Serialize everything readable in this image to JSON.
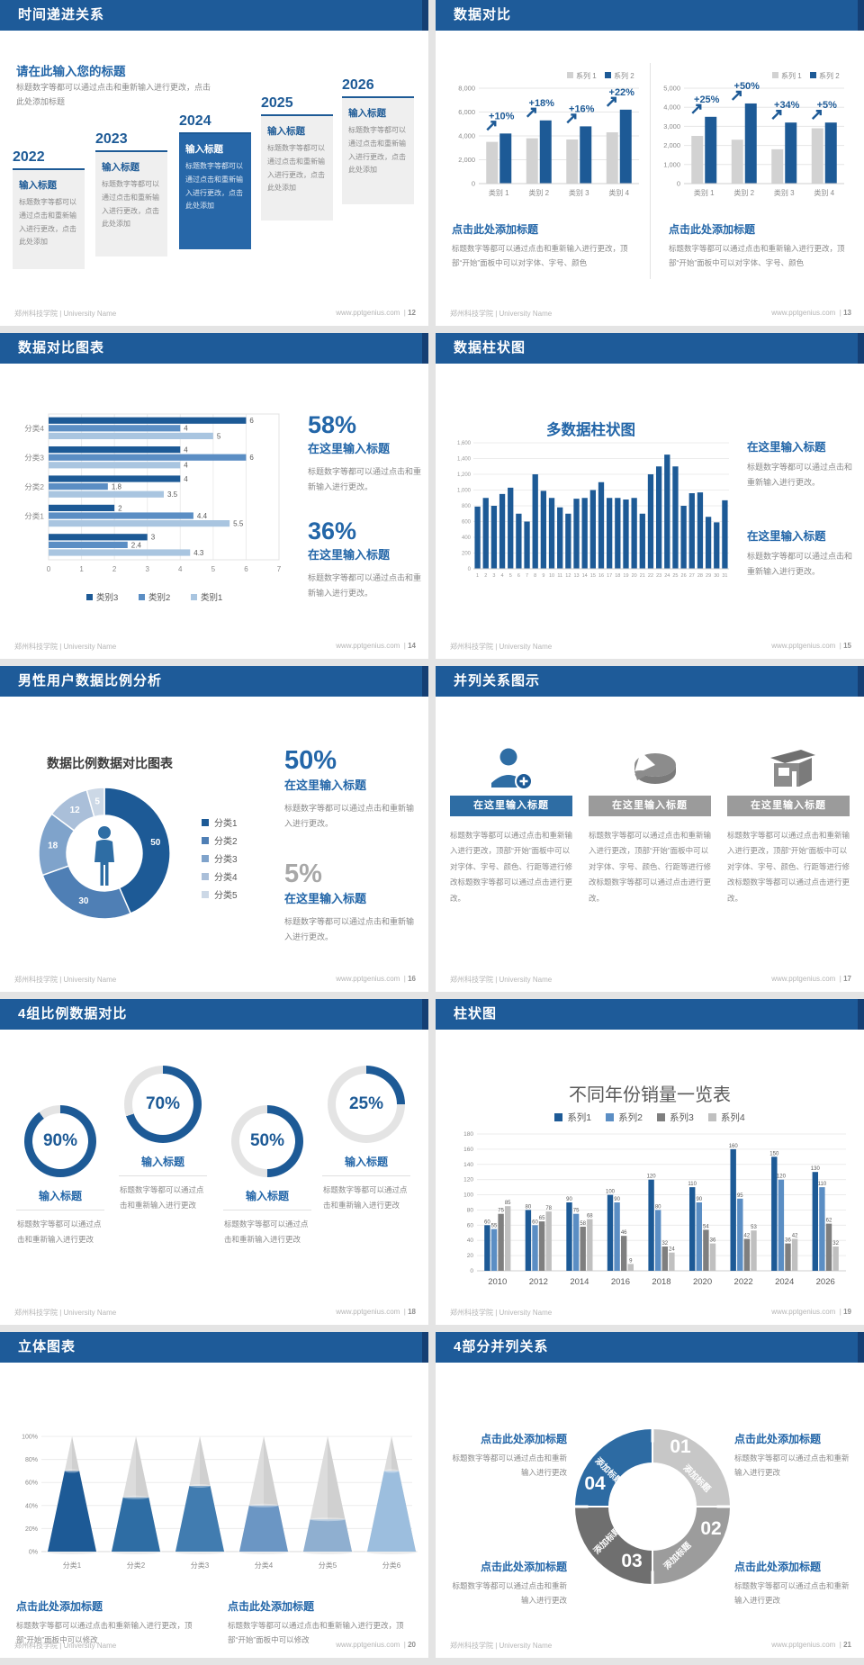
{
  "colors": {
    "header": "#1e5b99",
    "header_cap": "#153f74",
    "accent": "#2366a8",
    "dark": "#1d5a96",
    "mid": "#5b8ec4",
    "light": "#a9c5e0",
    "gray_bar": "#d2d2d2",
    "body_text": "#8a8a8a",
    "label": "#595959",
    "donut": [
      "#1d5a96",
      "#4f7fb5",
      "#7fa3cb",
      "#aabfd9",
      "#ccd8e6"
    ],
    "series4": [
      "#1d5a96",
      "#5b8ec4",
      "#7f7f7f",
      "#c0c0c0"
    ],
    "cones": [
      "#1d5a96",
      "#2e6da4",
      "#417cb0",
      "#6b96c4",
      "#8fafd0",
      "#9cbede"
    ],
    "ring_parts": [
      "#c7c7c7",
      "#9c9c9c",
      "#6f6f6f",
      "#2d6ba3"
    ]
  },
  "footer": {
    "org": "郑州科技学院 | University Name",
    "site": "www.pptgenius.com"
  },
  "slides": {
    "s12": {
      "title": "时间递进关系",
      "page": "12",
      "heading": "请在此输入您的标题",
      "intro": "标题数字等都可以通过点击和重新输入进行更改，点击此处添加标题",
      "items": [
        {
          "year": "2022",
          "head": "输入标题",
          "body": "标题数字等都可以通过点击和重新输入进行更改，点击此处添加",
          "highlight": false
        },
        {
          "year": "2023",
          "head": "输入标题",
          "body": "标题数字等都可以通过点击和重新输入进行更改，点击此处添加",
          "highlight": false
        },
        {
          "year": "2024",
          "head": "输入标题",
          "body": "标题数字等都可以通过点击和重新输入进行更改，点击此处添加",
          "highlight": true
        },
        {
          "year": "2025",
          "head": "输入标题",
          "body": "标题数字等都可以通过点击和重新输入进行更改，点击此处添加",
          "highlight": false
        },
        {
          "year": "2026",
          "head": "输入标题",
          "body": "标题数字等都可以通过点击和重新输入进行更改，点击此处添加",
          "highlight": false
        }
      ]
    },
    "s13": {
      "title": "数据对比",
      "page": "13",
      "blocks": [
        {
          "head": "点击此处添加标题",
          "body": "标题数字等都可以通过点击和重新输入进行更改，顶部“开始”面板中可以对字体、字号、颜色"
        },
        {
          "head": "点击此处添加标题",
          "body": "标题数字等都可以通过点击和重新输入进行更改，顶部“开始”面板中可以对字体、字号、颜色"
        }
      ]
    },
    "s14": {
      "title": "数据对比图表",
      "page": "14",
      "stats": [
        {
          "pct": "58%",
          "head": "在这里输入标题",
          "body": "标题数字等都可以通过点击和重新输入进行更改。"
        },
        {
          "pct": "36%",
          "head": "在这里输入标题",
          "body": "标题数字等都可以通过点击和重新输入进行更改。"
        }
      ]
    },
    "s15": {
      "title": "数据柱状图",
      "page": "15",
      "blocks": [
        {
          "head": "在这里输入标题",
          "body": "标题数字等都可以通过点击和重新输入进行更改。"
        },
        {
          "head": "在这里输入标题",
          "body": "标题数字等都可以通过点击和重新输入进行更改。"
        }
      ]
    },
    "s16": {
      "title": "男性用户数据比例分析",
      "page": "16",
      "stats": [
        {
          "pct": "50%",
          "head": "在这里输入标题",
          "body": "标题数字等都可以通过点击和重新输入进行更改。",
          "gray": false
        },
        {
          "pct": "5%",
          "head": "在这里输入标题",
          "body": "标题数字等都可以通过点击和重新输入进行更改。",
          "gray": true
        }
      ]
    },
    "s17": {
      "title": "并列关系图示",
      "page": "17",
      "columns": [
        {
          "icon": "woman-add-icon",
          "head": "在这里输入标题",
          "body": "标题数字等都可以通过点击和重新输入进行更改，顶部“开始”面板中可以对字体、字号、颜色、行距等进行修改标题数字等都可以通过点击进行更改。",
          "accent": true
        },
        {
          "icon": "pie-icon",
          "head": "在这里输入标题",
          "body": "标题数字等都可以通过点击和重新输入进行更改，顶部“开始”面板中可以对字体、字号、颜色、行距等进行修改标题数字等都可以通过点击进行更改。",
          "accent": false
        },
        {
          "icon": "shop-icon",
          "head": "在这里输入标题",
          "body": "标题数字等都可以通过点击和重新输入进行更改，顶部“开始”面板中可以对字体、字号、颜色、行距等进行修改标题数字等都可以通过点击进行更改。",
          "accent": false
        }
      ]
    },
    "s18": {
      "title": "4组比例数据对比",
      "page": "18",
      "items": [
        {
          "label": "90%",
          "value": 90,
          "head": "输入标题",
          "body": "标题数字等都可以通过点击和重新输入进行更改",
          "raised": false
        },
        {
          "label": "70%",
          "value": 70,
          "head": "输入标题",
          "body": "标题数字等都可以通过点击和重新输入进行更改",
          "raised": true
        },
        {
          "label": "50%",
          "value": 50,
          "head": "输入标题",
          "body": "标题数字等都可以通过点击和重新输入进行更改",
          "raised": false
        },
        {
          "label": "25%",
          "value": 25,
          "head": "输入标题",
          "body": "标题数字等都可以通过点击和重新输入进行更改",
          "raised": true
        }
      ]
    },
    "s19": {
      "title": "柱状图",
      "page": "19"
    },
    "s20": {
      "title": "立体图表",
      "page": "20",
      "blocks": [
        {
          "head": "点击此处添加标题",
          "body": "标题数字等都可以通过点击和重新输入进行更改，顶部“开始”面板中可以修改"
        },
        {
          "head": "点击此处添加标题",
          "body": "标题数字等都可以通过点击和重新输入进行更改，顶部“开始”面板中可以修改"
        }
      ]
    },
    "s21": {
      "title": "4部分并列关系",
      "page": "21",
      "parts": [
        {
          "num": "01",
          "label": "添加标题"
        },
        {
          "num": "02",
          "label": "添加标题"
        },
        {
          "num": "03",
          "label": "添加标题"
        },
        {
          "num": "04",
          "label": "添加标题"
        }
      ],
      "blocks": [
        {
          "head": "点击此处添加标题",
          "body": "标题数字等都可以通过点击和重新输入进行更改"
        },
        {
          "head": "点击此处添加标题",
          "body": "标题数字等都可以通过点击和重新输入进行更改"
        },
        {
          "head": "点击此处添加标题",
          "body": "标题数字等都可以通过点击和重新输入进行更改"
        },
        {
          "head": "点击此处添加标题",
          "body": "标题数字等都可以通过点击和重新输入进行更改"
        }
      ]
    }
  },
  "chart_data": [
    {
      "id": "s13-left",
      "type": "bar",
      "categories": [
        "类别 1",
        "类别 2",
        "类别 3",
        "类别 4"
      ],
      "series": [
        {
          "name": "系列 1",
          "values": [
            3500,
            3800,
            3700,
            4300
          ]
        },
        {
          "name": "系列 2",
          "values": [
            4200,
            5300,
            4800,
            6200
          ]
        }
      ],
      "annotations": [
        "+10%",
        "+18%",
        "+16%",
        "+22%"
      ],
      "ylim": [
        0,
        8000
      ],
      "ytick": 2000
    },
    {
      "id": "s13-right",
      "type": "bar",
      "categories": [
        "类别 1",
        "类别 2",
        "类别 3",
        "类别 4"
      ],
      "series": [
        {
          "name": "系列 1",
          "values": [
            2500,
            2300,
            1800,
            2900
          ]
        },
        {
          "name": "系列 2",
          "values": [
            3500,
            4200,
            3200,
            3200
          ]
        }
      ],
      "annotations": [
        "+25%",
        "+50%",
        "+34%",
        "+5%"
      ],
      "ylim": [
        0,
        5000
      ],
      "ytick": 1000
    },
    {
      "id": "s14",
      "type": "hbar",
      "series_names": [
        "类别3",
        "类别2",
        "类别1"
      ],
      "groups": [
        {
          "label": "分类4",
          "values": [
            6,
            4,
            5
          ]
        },
        {
          "label": "分类3",
          "values": [
            4,
            6,
            4
          ]
        },
        {
          "label": "分类2",
          "values": [
            4,
            1.8,
            3.5
          ]
        },
        {
          "label": "分类1",
          "values": [
            2,
            4.4,
            5.5
          ]
        },
        {
          "label": "",
          "values": [
            3,
            2.4,
            4.3
          ]
        }
      ],
      "xlim": [
        0,
        7
      ],
      "xtick": 1
    },
    {
      "id": "s15",
      "type": "bar",
      "title": "多数据柱状图",
      "categories": [
        "1",
        "2",
        "3",
        "4",
        "5",
        "6",
        "7",
        "8",
        "9",
        "10",
        "11",
        "12",
        "13",
        "14",
        "15",
        "16",
        "17",
        "18",
        "19",
        "20",
        "21",
        "22",
        "23",
        "24",
        "25",
        "26",
        "27",
        "28",
        "29",
        "30",
        "31"
      ],
      "values": [
        790,
        900,
        800,
        950,
        1030,
        700,
        600,
        1200,
        990,
        900,
        780,
        700,
        890,
        900,
        1000,
        1100,
        900,
        900,
        880,
        900,
        700,
        1200,
        1300,
        1450,
        1300,
        800,
        960,
        970,
        660,
        590,
        870
      ],
      "ylim": [
        0,
        1600
      ],
      "ytick": 200
    },
    {
      "id": "s16",
      "type": "donut",
      "title": "数据比例数据对比图表",
      "labels": [
        "分类1",
        "分类2",
        "分类3",
        "分类4",
        "分类5"
      ],
      "values": [
        50,
        30,
        18,
        12,
        5
      ]
    },
    {
      "id": "s18",
      "type": "rings",
      "values": [
        90,
        70,
        50,
        25
      ]
    },
    {
      "id": "s19",
      "type": "bar",
      "title": "不同年份销量一览表",
      "categories": [
        "2010",
        "2012",
        "2014",
        "2016",
        "2018",
        "2020",
        "2022",
        "2024",
        "2026"
      ],
      "series": [
        {
          "name": "系列1",
          "values": [
            60,
            80,
            90,
            100,
            120,
            110,
            160,
            150,
            130
          ]
        },
        {
          "name": "系列2",
          "values": [
            55,
            60,
            75,
            90,
            80,
            90,
            95,
            120,
            110
          ]
        },
        {
          "name": "系列3",
          "values": [
            75,
            65,
            58,
            46,
            32,
            54,
            42,
            36,
            62
          ]
        },
        {
          "name": "系列4",
          "values": [
            85,
            78,
            68,
            9,
            24,
            36,
            53,
            42,
            32
          ]
        }
      ],
      "ylim": [
        0,
        180
      ],
      "ytick": 20
    },
    {
      "id": "s20",
      "type": "cone",
      "categories": [
        "分类1",
        "分类2",
        "分类3",
        "分类4",
        "分类5",
        "分类6"
      ],
      "values_pct": [
        70,
        47,
        57,
        40,
        28,
        70
      ],
      "yticks": [
        "0%",
        "20%",
        "40%",
        "60%",
        "80%",
        "100%"
      ]
    }
  ]
}
